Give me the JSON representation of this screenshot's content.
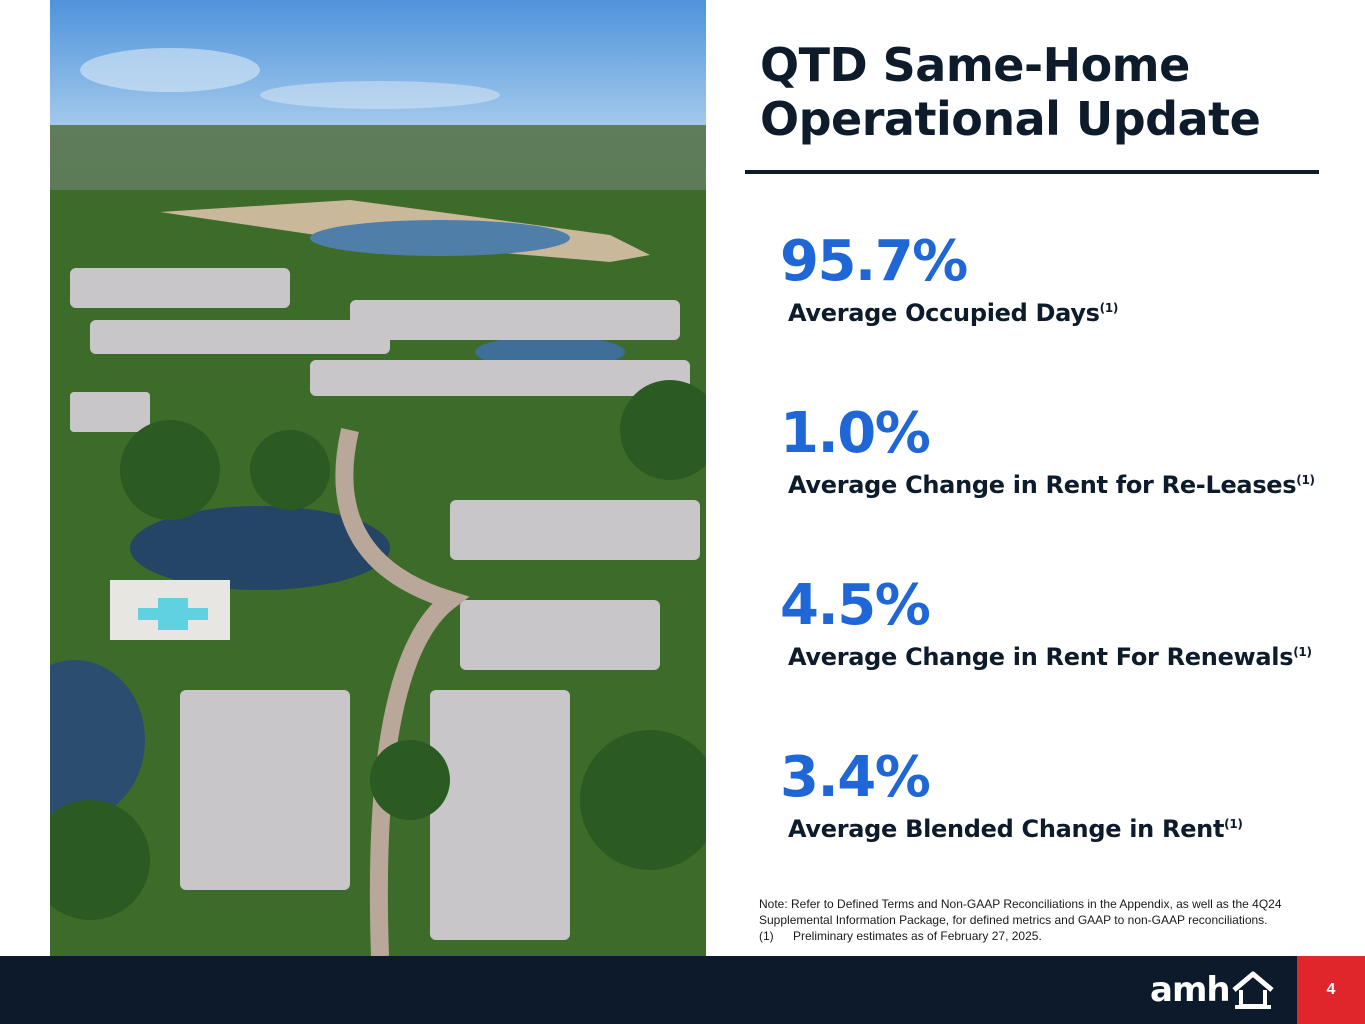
{
  "title": "QTD Same-Home Operational Update",
  "metrics": [
    {
      "value": "95.7%",
      "label": "Average Occupied Days",
      "footnote": "(1)"
    },
    {
      "value": "1.0%",
      "label": "Average Change in Rent for Re-Leases",
      "footnote": "(1)"
    },
    {
      "value": "4.5%",
      "label": "Average Change in Rent For Renewals",
      "footnote": "(1)"
    },
    {
      "value": "3.4%",
      "label": "Average Blended Change in Rent",
      "footnote": "(1)"
    }
  ],
  "note": {
    "text": "Note: Refer to Defined Terms and Non-GAAP Reconciliations in the Appendix, as well as the 4Q24 Supplemental Information Package, for defined metrics and GAAP to non-GAAP reconciliations.",
    "footnote_marker": "(1)",
    "footnote_text": "Preliminary estimates as of February 27, 2025."
  },
  "footer": {
    "logo_text": "amh",
    "page_number": "4"
  },
  "colors": {
    "accent_blue": "#1f66d6",
    "navy": "#0c1a2b",
    "page_red": "#e0262b"
  }
}
